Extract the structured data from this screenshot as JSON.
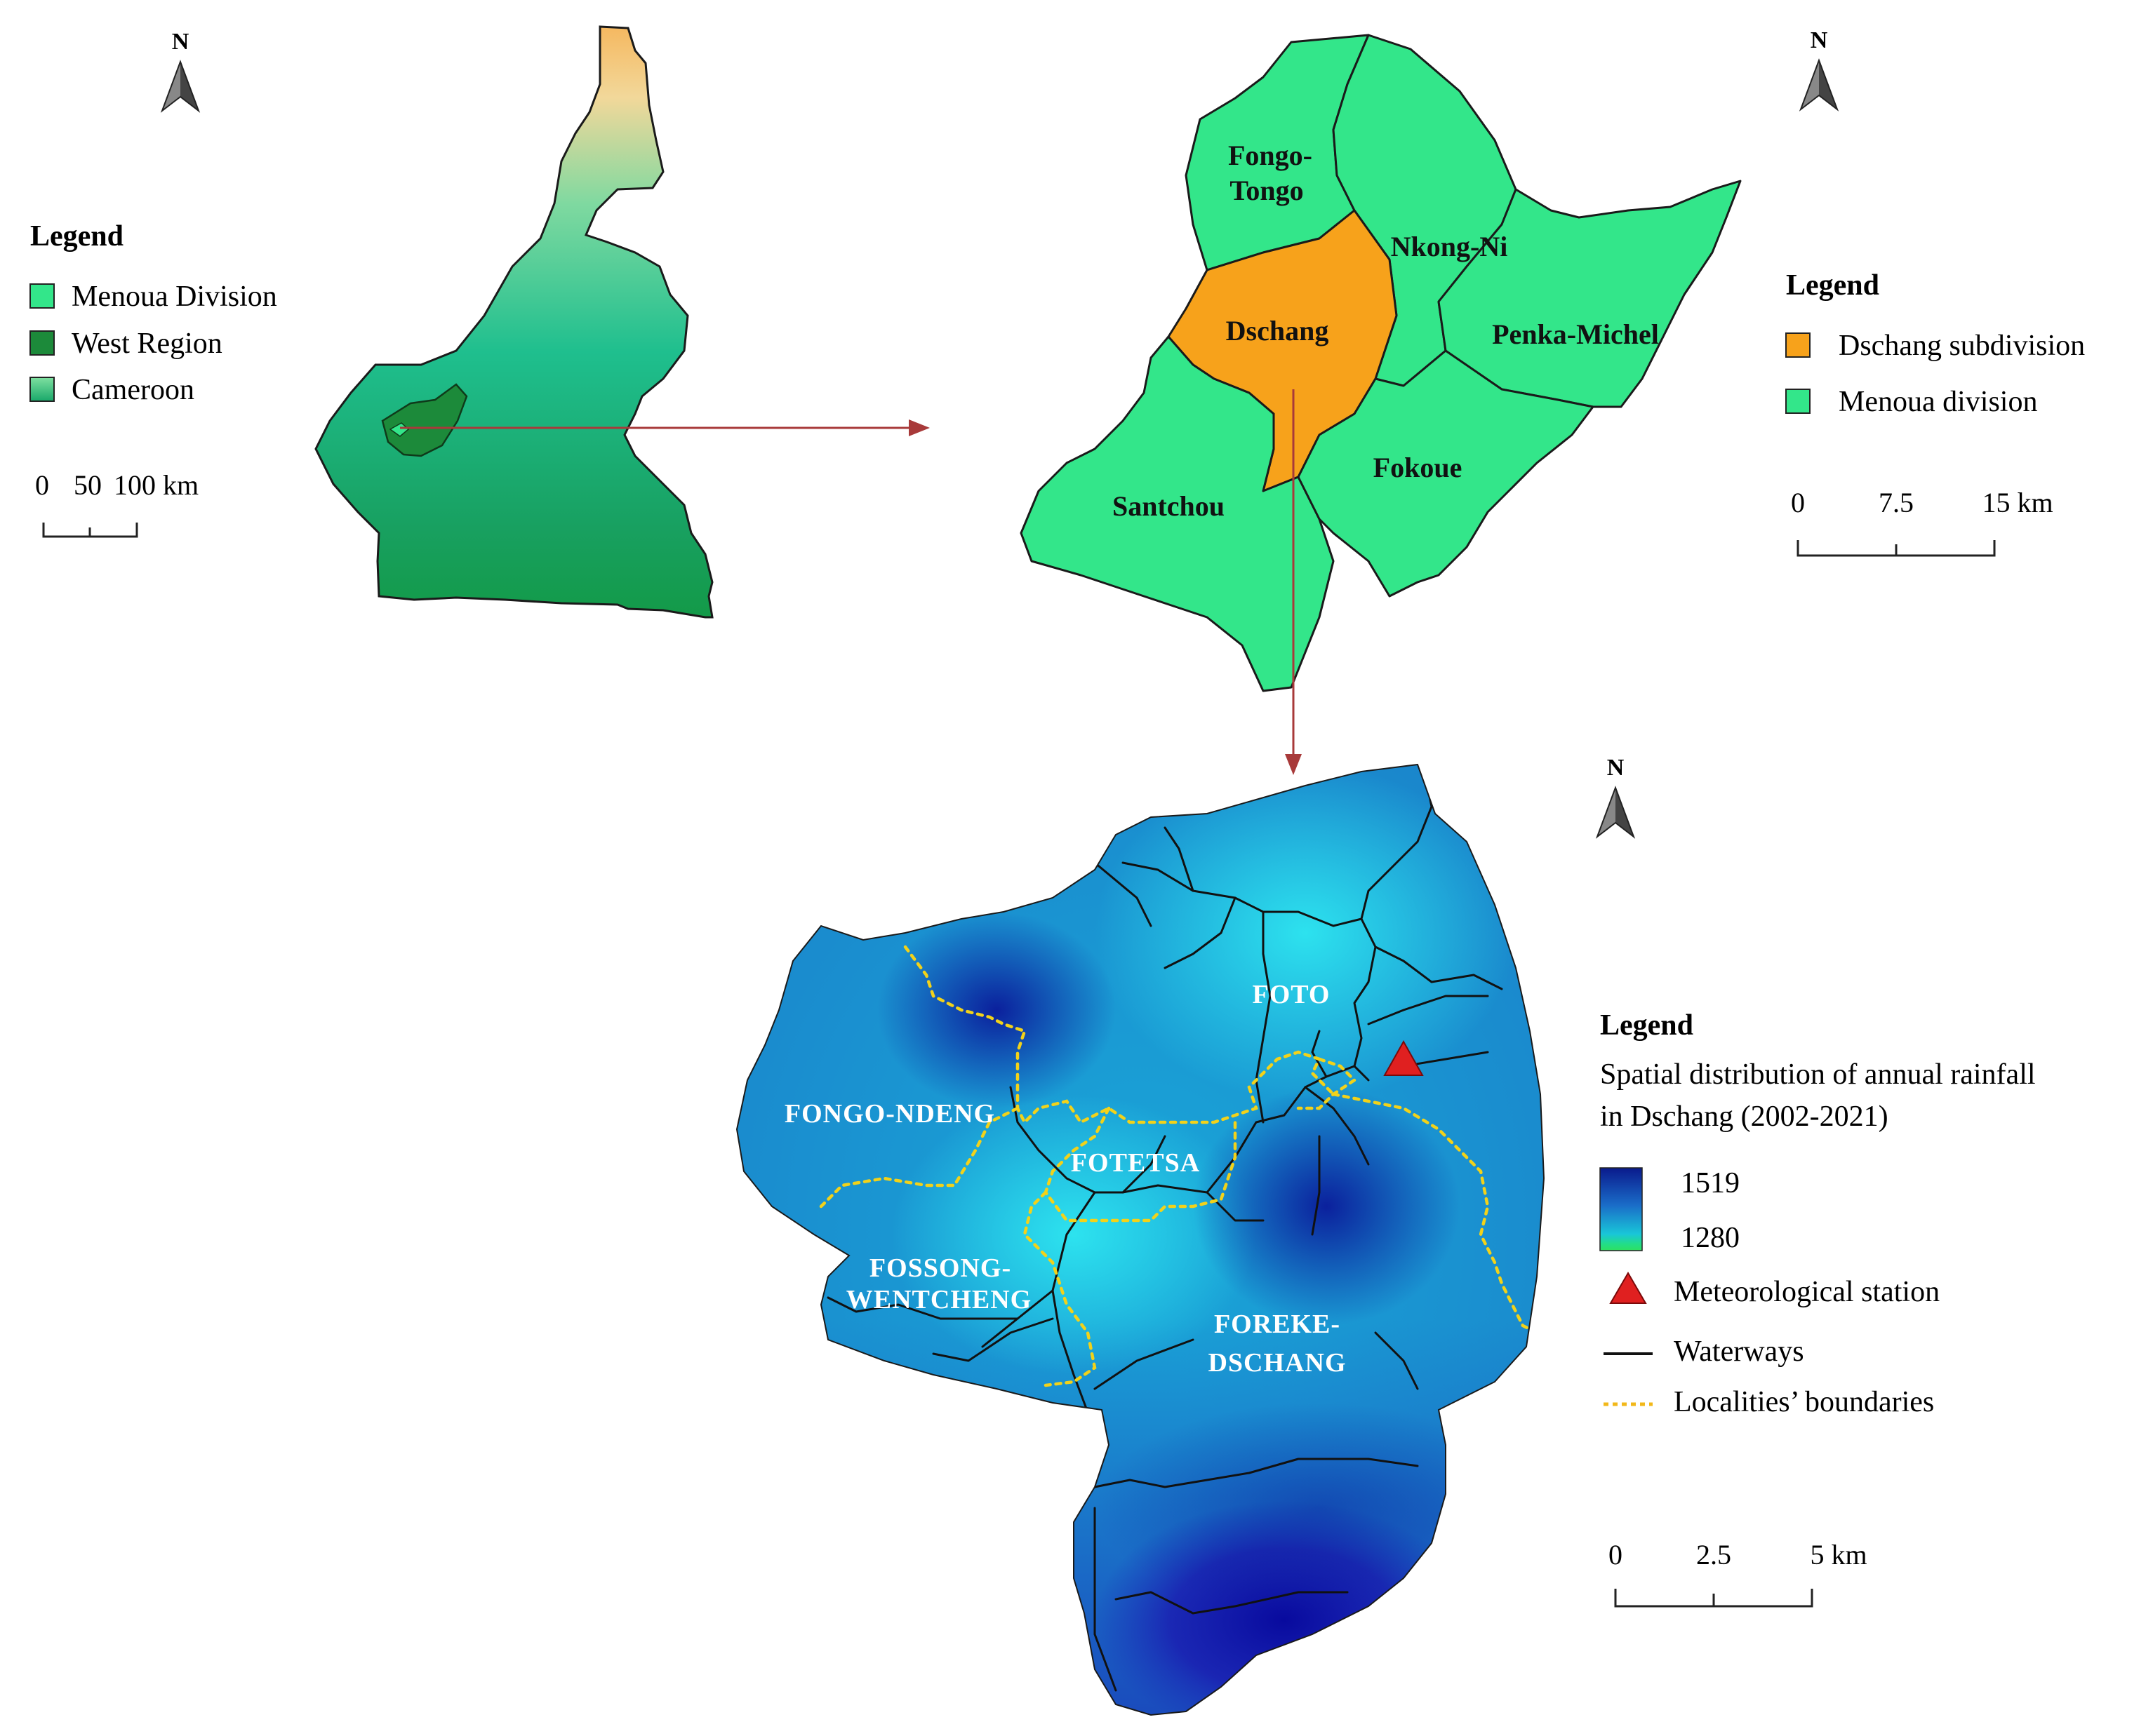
{
  "colors": {
    "menoua_division": "#33e68a",
    "west_region": "#1c8a3a",
    "dschang_subdivision": "#f7a21b",
    "border": "#1a1a1a",
    "arrow": "#a83a3a",
    "station": "#e02020",
    "locality_boundary": "#f2d21a",
    "rain_high": "#0a1a8c",
    "rain_low": "#1ad96a"
  },
  "north_arrow": {
    "label": "N",
    "icon": "north-arrow-icon"
  },
  "cameroon_panel": {
    "legend_title": "Legend",
    "legend_items": [
      {
        "label": "Menoua Division",
        "swatch": "#33e68a"
      },
      {
        "label": "West Region",
        "swatch": "#1c8a3a"
      },
      {
        "label": "Cameroon",
        "swatch": "gradient"
      }
    ],
    "scale_labels": [
      "0",
      "50",
      "100 km"
    ]
  },
  "menoua_panel": {
    "legend_title": "Legend",
    "legend_items": [
      {
        "label": "Dschang subdivision",
        "swatch": "#f7a21b"
      },
      {
        "label": "Menoua division",
        "swatch": "#33e68a"
      }
    ],
    "scale_labels": [
      "0",
      "7.5",
      "15 km"
    ],
    "regions": [
      "Fongo-",
      "Tongo",
      "Nkong-Ni",
      "Dschang",
      "Penka-Michel",
      "Santchou",
      "Fokoue"
    ]
  },
  "dschang_panel": {
    "legend_title": "Legend",
    "legend_subtitle_1": "Spatial distribution of annual rainfall",
    "legend_subtitle_2": "in Dschang (2002-2021)",
    "rainfall_max": "1519",
    "rainfall_min": "1280",
    "station_label": "Meteorological station",
    "waterways_label": "Waterways",
    "boundaries_label": "Localities’ boundaries",
    "scale_labels": [
      "0",
      "2.5",
      "5 km"
    ],
    "localities": [
      "FOTO",
      "FONGO-NDENG",
      "FOTETSA",
      "FOSSONG-",
      "WENTCHENG",
      "FOREKE-",
      "DSCHANG"
    ]
  }
}
